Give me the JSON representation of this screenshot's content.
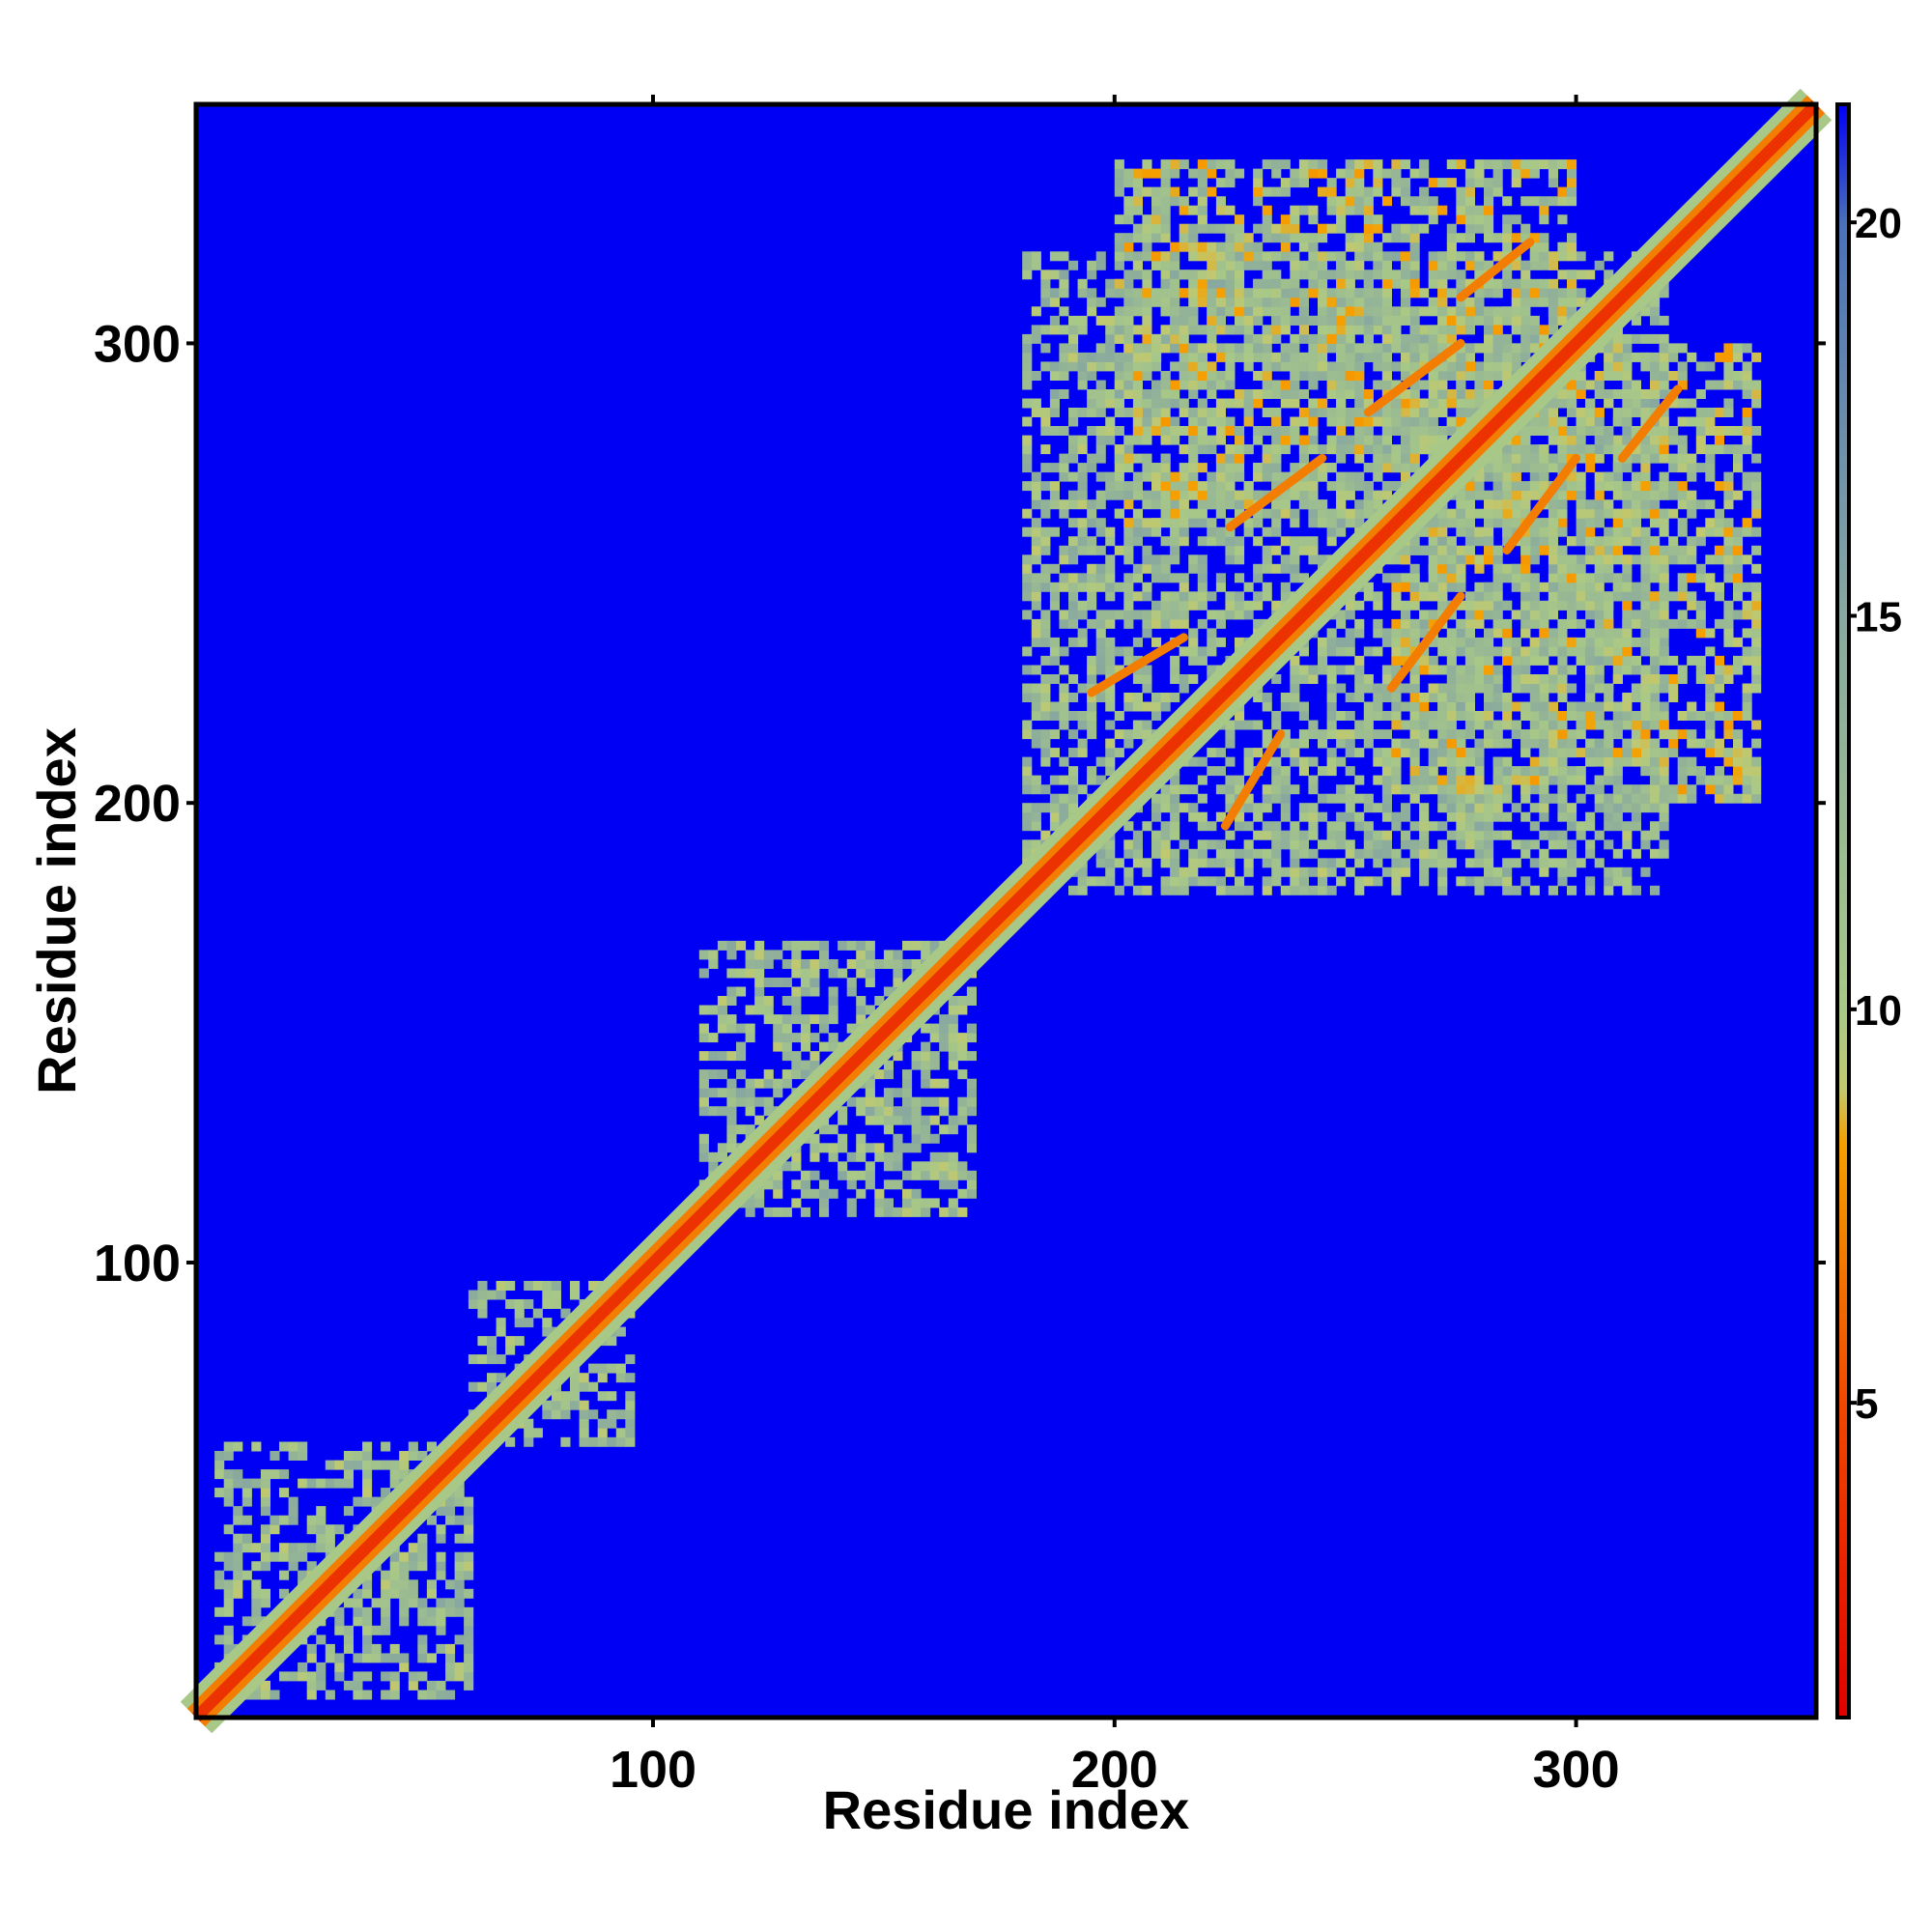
{
  "chart_data": {
    "type": "heatmap",
    "title": "",
    "xlabel": "Residue index",
    "ylabel": "Residue index",
    "xlim": [
      1,
      352
    ],
    "ylim": [
      1,
      352
    ],
    "xticks": [
      100,
      200,
      300
    ],
    "yticks": [
      100,
      200,
      300
    ],
    "colorbar": {
      "range": [
        1,
        21.5
      ],
      "ticks": [
        5,
        10,
        15,
        20
      ],
      "placement": "right"
    },
    "colormap": [
      {
        "value": 1,
        "color": "#e00000"
      },
      {
        "value": 5,
        "color": "#f04800"
      },
      {
        "value": 8.3,
        "color": "#f5a000"
      },
      {
        "value": 9,
        "color": "#c0c870"
      },
      {
        "value": 10,
        "color": "#a8c888"
      },
      {
        "value": 15,
        "color": "#88a8a0"
      },
      {
        "value": 20,
        "color": "#4a70b8"
      },
      {
        "value": 21.5,
        "color": "#0000f5"
      }
    ],
    "background_color": "#0000f5",
    "diagonal_value": 3.8,
    "contact_regions": [
      {
        "x": [
          5,
          60
        ],
        "y": [
          5,
          60
        ],
        "value": 12
      },
      {
        "x": [
          60,
          95
        ],
        "y": [
          60,
          95
        ],
        "value": 12
      },
      {
        "x": [
          110,
          170
        ],
        "y": [
          110,
          170
        ],
        "value": 12
      },
      {
        "x": [
          180,
          320
        ],
        "y": [
          180,
          320
        ],
        "value": 12
      },
      {
        "x": [
          200,
          300
        ],
        "y": [
          260,
          340
        ],
        "value": 11
      },
      {
        "x": [
          260,
          340
        ],
        "y": [
          200,
          300
        ],
        "value": 11
      }
    ],
    "strand_pairs": [
      {
        "start": [
          195,
          224
        ],
        "end": [
          215,
          236
        ],
        "value": 7
      },
      {
        "start": [
          224,
          195
        ],
        "end": [
          236,
          215
        ],
        "value": 7
      },
      {
        "start": [
          225,
          260
        ],
        "end": [
          245,
          275
        ],
        "value": 7
      },
      {
        "start": [
          260,
          225
        ],
        "end": [
          275,
          245
        ],
        "value": 7
      },
      {
        "start": [
          255,
          285
        ],
        "end": [
          275,
          300
        ],
        "value": 7
      },
      {
        "start": [
          285,
          255
        ],
        "end": [
          300,
          275
        ],
        "value": 7
      },
      {
        "start": [
          275,
          310
        ],
        "end": [
          290,
          322
        ],
        "value": 7
      },
      {
        "start": [
          310,
          275
        ],
        "end": [
          322,
          290
        ],
        "value": 7
      }
    ]
  }
}
